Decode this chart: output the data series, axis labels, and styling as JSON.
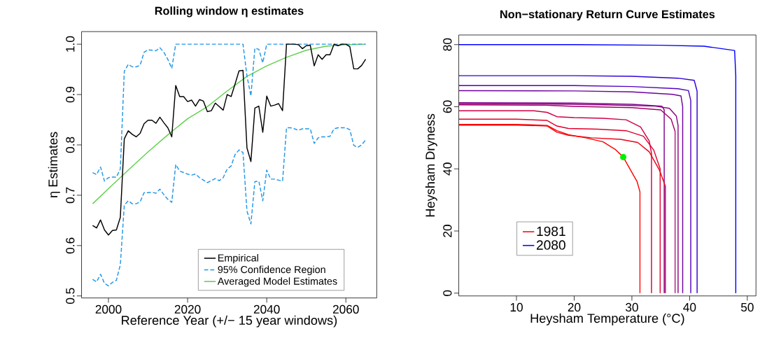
{
  "chart_data": [
    {
      "type": "line",
      "title": "Rolling window η estimates",
      "xlabel": "Reference Year (+/− 15 year windows)",
      "ylabel": "η Estimates",
      "xlim": [
        1993.2,
        2067.8
      ],
      "ylim": [
        0.496,
        1.025
      ],
      "xticks": [
        2000,
        2020,
        2040,
        2060
      ],
      "yticks": [
        0.5,
        0.6,
        0.7,
        0.8,
        0.9,
        {
          "value": 1,
          "label": "1.0"
        }
      ],
      "legend": "bottom right",
      "x": [
        1996,
        1997,
        1998,
        1999,
        2000,
        2001,
        2002,
        2003,
        2004,
        2005,
        2006,
        2007,
        2008,
        2009,
        2010,
        2011,
        2012,
        2013,
        2014,
        2015,
        2016,
        2017,
        2018,
        2019,
        2020,
        2021,
        2022,
        2023,
        2024,
        2025,
        2026,
        2027,
        2028,
        2029,
        2030,
        2031,
        2032,
        2033,
        2034,
        2035,
        2036,
        2037,
        2038,
        2039,
        2040,
        2041,
        2042,
        2043,
        2044,
        2045,
        2046,
        2047,
        2048,
        2049,
        2050,
        2051,
        2052,
        2053,
        2054,
        2055,
        2056,
        2057,
        2058,
        2059,
        2060,
        2061,
        2062,
        2063,
        2064,
        2065
      ],
      "series": [
        {
          "name": "Empirical",
          "color": "#000000",
          "values": [
            0.64,
            0.635,
            0.651,
            0.631,
            0.621,
            0.63,
            0.631,
            0.656,
            0.812,
            0.828,
            0.821,
            0.816,
            0.823,
            0.842,
            0.849,
            0.849,
            0.843,
            0.855,
            0.844,
            0.834,
            0.816,
            0.918,
            0.896,
            0.896,
            0.886,
            0.889,
            0.877,
            0.89,
            0.887,
            0.866,
            0.868,
            0.883,
            0.876,
            0.869,
            0.9,
            0.896,
            0.921,
            0.947,
            0.948,
            0.794,
            0.767,
            0.873,
            0.877,
            0.825,
            0.897,
            0.877,
            0.879,
            0.882,
            0.868,
            1.0,
            1.0,
            1.0,
            0.999,
            0.991,
            0.997,
            0.998,
            0.957,
            0.979,
            0.97,
            0.979,
            0.979,
            1.0,
            0.997,
            1.0,
            1.0,
            0.995,
            0.951,
            0.951,
            0.958,
            0.97
          ]
        },
        {
          "name": "95% Confidence Region",
          "color": "#2297e6",
          "line_style": "dashed",
          "values": [
            0.745,
            0.741,
            0.756,
            0.728,
            0.735,
            0.736,
            0.736,
            0.752,
            0.946,
            0.96,
            0.955,
            0.955,
            0.958,
            0.984,
            0.989,
            0.988,
            0.987,
            0.993,
            0.984,
            0.97,
            0.952,
            1.0,
            1.0,
            1.0,
            1.0,
            1.0,
            1.0,
            1.0,
            1.0,
            1.0,
            1.0,
            1.0,
            1.0,
            1.0,
            1.0,
            1.0,
            1.0,
            1.0,
            1.0,
            0.937,
            0.897,
            0.992,
            0.99,
            0.963,
            1.0,
            1.0,
            1.0,
            1.0,
            1.0,
            1.0,
            1.0,
            1.0,
            1.0,
            1.0,
            1.0,
            1.0,
            1.0,
            1.0,
            1.0,
            1.0,
            1.0,
            1.0,
            1.0,
            1.0,
            1.0,
            1.0,
            1.0,
            1.0,
            1.0,
            1.0
          ]
        },
        {
          "color": "#2297e6",
          "line_style": "dashed",
          "values": [
            0.533,
            0.528,
            0.543,
            0.525,
            0.52,
            0.527,
            0.531,
            0.562,
            0.68,
            0.689,
            0.683,
            0.683,
            0.687,
            0.705,
            0.705,
            0.706,
            0.704,
            0.712,
            0.701,
            0.692,
            0.686,
            0.761,
            0.748,
            0.745,
            0.742,
            0.74,
            0.742,
            0.735,
            0.73,
            0.725,
            0.729,
            0.733,
            0.729,
            0.735,
            0.752,
            0.758,
            0.781,
            0.79,
            0.785,
            0.669,
            0.643,
            0.727,
            0.728,
            0.689,
            0.75,
            0.732,
            0.732,
            0.73,
            0.728,
            0.834,
            0.834,
            0.832,
            0.829,
            0.832,
            0.832,
            0.832,
            0.803,
            0.814,
            0.816,
            0.816,
            0.817,
            0.832,
            0.834,
            0.834,
            0.834,
            0.83,
            0.799,
            0.795,
            0.8,
            0.81
          ]
        },
        {
          "name": "Averaged Model Estimates",
          "color": "#61d04f",
          "x": [
            1996,
            2000,
            2005,
            2010,
            2015,
            2020,
            2025,
            2030,
            2035,
            2040,
            2045,
            2050,
            2055,
            2060,
            2065
          ],
          "values": [
            0.683,
            0.713,
            0.75,
            0.786,
            0.82,
            0.852,
            0.876,
            0.907,
            0.936,
            0.957,
            0.974,
            0.988,
            0.996,
            0.999,
            1.0
          ]
        }
      ]
    },
    {
      "type": "line",
      "title": "Non−stationary Return Curve Estimates",
      "xlabel": "Heysham Temperature (°C)",
      "ylabel": "Heysham Dryness",
      "xlim": [
        0,
        51.5
      ],
      "ylim": [
        -0.9,
        83.1
      ],
      "xticks": [
        10,
        20,
        30,
        40,
        50
      ],
      "yticks": [
        0,
        20,
        40,
        60,
        80
      ],
      "legend": "bottom left",
      "series": [
        {
          "name": "1981",
          "color": "#ff0000",
          "x": [
            0,
            10,
            15.3,
            17,
            19,
            22,
            25,
            27.1,
            28.5,
            30.9,
            31.4,
            31.4
          ],
          "values": [
            54.3,
            54.3,
            54.0,
            52.3,
            51.0,
            50.0,
            48.7,
            46.3,
            43.8,
            35.9,
            32.6,
            0
          ]
        },
        {
          "color": "#f00014",
          "x": [
            0,
            10,
            15.3,
            17,
            19,
            23,
            28,
            31,
            33,
            34.8,
            35.8,
            35.8
          ],
          "values": [
            54.1,
            54.1,
            53.8,
            51.8,
            50.8,
            50.0,
            49.5,
            48.5,
            45.5,
            39.5,
            34.4,
            0
          ]
        },
        {
          "color": "#e0002c",
          "x": [
            0,
            10,
            15.3,
            17,
            19,
            24,
            29,
            32,
            33.8,
            34.9,
            34.9
          ],
          "values": [
            56.0,
            56.0,
            55.6,
            53.8,
            53.0,
            52.8,
            52.3,
            50.5,
            46,
            40,
            0
          ]
        },
        {
          "color": "#d00044",
          "x": [
            0,
            13,
            15.3,
            17,
            20,
            25,
            29,
            31.5,
            33,
            33.4,
            33.4
          ],
          "values": [
            58.7,
            58.7,
            58.2,
            56.8,
            56.5,
            56.3,
            55.8,
            53.5,
            49,
            45,
            0
          ]
        },
        {
          "color": "#a0006a",
          "x": [
            0,
            15,
            20,
            30,
            35,
            36.8,
            37.5,
            37.5
          ],
          "values": [
            60.6,
            60.5,
            60.1,
            59.7,
            59,
            56,
            52,
            0
          ]
        },
        {
          "color": "#90007f",
          "x": [
            0,
            15,
            25,
            34,
            36.5,
            37.7,
            38.0,
            38.0
          ],
          "values": [
            61.0,
            60.9,
            60.6,
            60.2,
            59.5,
            57,
            54,
            0
          ]
        },
        {
          "color": "#80008f",
          "x": [
            0,
            20,
            30,
            35.2,
            35.6,
            35.6
          ],
          "values": [
            61.3,
            61.2,
            60.8,
            60.2,
            59,
            0
          ]
        },
        {
          "color": "#7000a0",
          "x": [
            0,
            20,
            30,
            37,
            38.5,
            38.8,
            38.8
          ],
          "values": [
            65.2,
            65.1,
            64.8,
            64.0,
            63.5,
            60,
            0
          ]
        },
        {
          "color": "#5000c0",
          "x": [
            0,
            20,
            30,
            38,
            39.8,
            40.2,
            40.2
          ],
          "values": [
            66.8,
            66.8,
            66.5,
            65.8,
            65.2,
            62,
            0
          ]
        },
        {
          "color": "#3000d8",
          "x": [
            0,
            20,
            30,
            38,
            40.8,
            41.3,
            41.3
          ],
          "values": [
            70.0,
            70.0,
            69.8,
            69.2,
            68.5,
            65,
            0
          ]
        },
        {
          "name": "2080",
          "color": "#0000ff",
          "x": [
            0,
            20,
            35,
            42.5,
            47.8,
            48.0,
            48.0
          ],
          "values": [
            80.0,
            80.0,
            79.8,
            79.5,
            78.1,
            70,
            0
          ]
        },
        {
          "type": "scatter",
          "color": "#00ee00",
          "marker": "circle",
          "x": [
            28.5
          ],
          "values": [
            43.8
          ]
        }
      ]
    }
  ]
}
